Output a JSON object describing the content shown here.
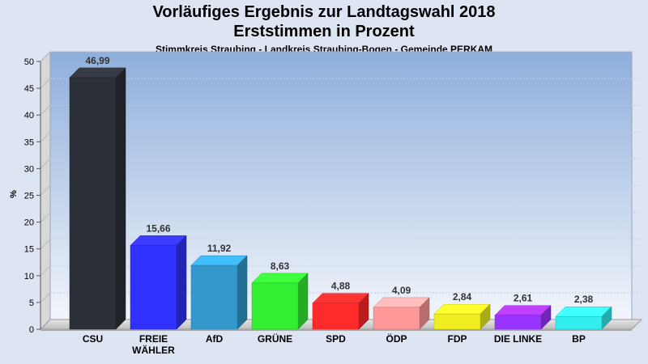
{
  "header": {
    "title_line1": "Vorläufiges Ergebnis zur Landtagswahl 2018",
    "title_line2": "Erststimmen in Prozent",
    "subtitle": "Stimmkreis Straubing - Landkreis Straubing-Bogen - Gemeinde PERKAM"
  },
  "chart_data": {
    "type": "bar",
    "title": "Vorläufiges Ergebnis zur Landtagswahl 2018 / Erststimmen in Prozent",
    "subtitle": "Stimmkreis Straubing - Landkreis Straubing-Bogen - Gemeinde PERKAM",
    "ylabel": "%",
    "xlabel": "",
    "ylim": [
      0,
      50
    ],
    "yticks": [
      0,
      5,
      10,
      15,
      20,
      25,
      30,
      35,
      40,
      45,
      50
    ],
    "grid": true,
    "categories": [
      [
        "CSU"
      ],
      [
        "FREIE",
        "WÄHLER"
      ],
      [
        "AfD"
      ],
      [
        "GRÜNE"
      ],
      [
        "SPD"
      ],
      [
        "ÖDP"
      ],
      [
        "FDP"
      ],
      [
        "DIE LINKE"
      ],
      [
        "BP"
      ]
    ],
    "values": [
      46.99,
      15.66,
      11.92,
      8.63,
      4.88,
      4.09,
      2.84,
      2.61,
      2.38
    ],
    "value_labels": [
      "46,99",
      "15,66",
      "11,92",
      "8,63",
      "4,88",
      "4,09",
      "2,84",
      "2,61",
      "2,38"
    ],
    "colors": [
      "#2b2f38",
      "#3030ff",
      "#3399cc",
      "#33ee33",
      "#ff2a2a",
      "#ff9999",
      "#eeee22",
      "#9933ff",
      "#33eeee"
    ]
  }
}
